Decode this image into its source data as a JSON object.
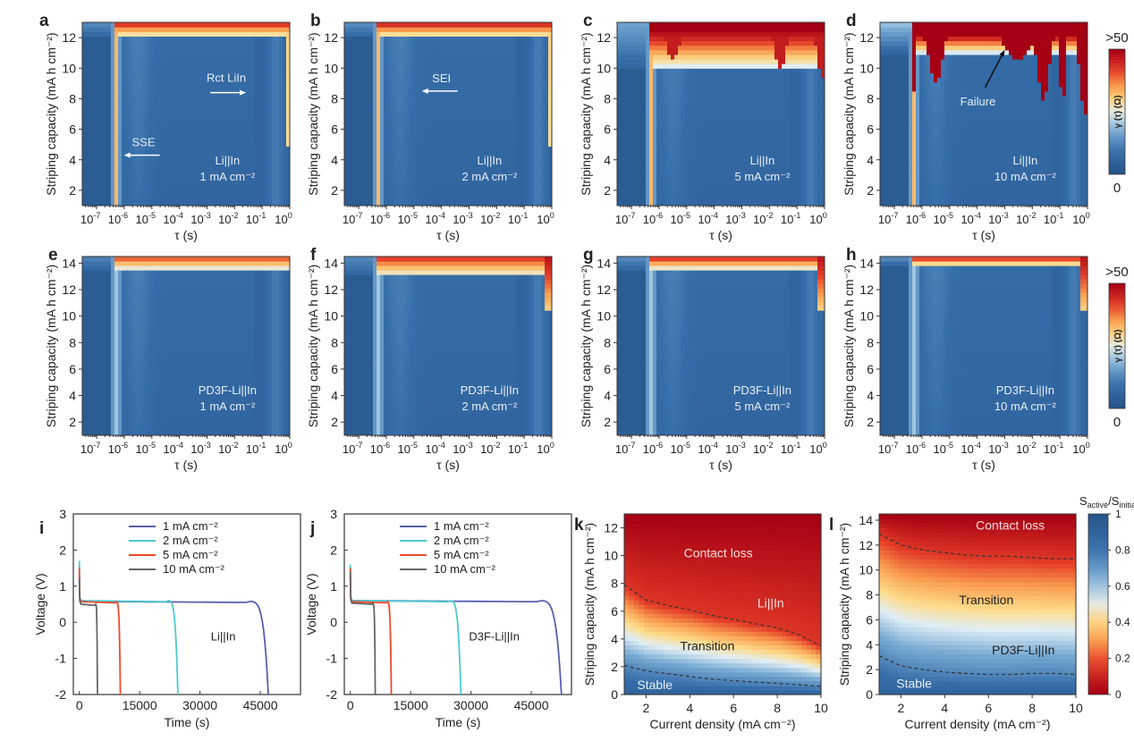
{
  "chart_data": [
    {
      "panel": "a",
      "type": "heatmap",
      "xlabel": "τ (s)",
      "ylabel": "Striping capacity  (mA h cm⁻²)",
      "x_scale": "log",
      "xlim": [
        3e-08,
        1
      ],
      "ylim": [
        1,
        13
      ],
      "xticks": [
        "10⁻⁷",
        "10⁻⁶",
        "10⁻⁵",
        "10⁻⁴",
        "10⁻³",
        "10⁻²",
        "10⁻¹",
        "10⁰"
      ],
      "yticks": [
        2,
        4,
        6,
        8,
        10,
        12
      ],
      "label": [
        "Li||In",
        "1 mA cm⁻²"
      ],
      "annotations": [
        {
          "text": "SSE",
          "arrow": "left",
          "at_tau": 5e-06,
          "at_y": 4.3
        },
        {
          "text": "Rct LiIn",
          "arrow": "right",
          "at_tau": 0.005,
          "at_y": 8.4
        }
      ],
      "hot_onset_capacity": 12.0,
      "severity": 0.25
    },
    {
      "panel": "b",
      "type": "heatmap",
      "xlabel": "τ (s)",
      "ylabel": "Striping capacity  (mA h cm⁻²)",
      "x_scale": "log",
      "xlim": [
        3e-08,
        1
      ],
      "ylim": [
        1,
        13
      ],
      "xticks": [
        "10⁻⁷",
        "10⁻⁶",
        "10⁻⁵",
        "10⁻⁴",
        "10⁻³",
        "10⁻²",
        "10⁻¹",
        "10⁰"
      ],
      "yticks": [
        2,
        4,
        6,
        8,
        10,
        12
      ],
      "label": [
        "Li||In",
        "2 mA cm⁻²"
      ],
      "annotations": [
        {
          "text": "SEI",
          "arrow": "left",
          "at_tau": 0.0001,
          "at_y": 8.5
        }
      ],
      "hot_onset_capacity": 12.0,
      "severity": 0.3
    },
    {
      "panel": "c",
      "type": "heatmap",
      "xlabel": "τ (s)",
      "ylabel": "Striping capacity  (mA h cm⁻²)",
      "x_scale": "log",
      "xlim": [
        3e-08,
        1
      ],
      "ylim": [
        1,
        13
      ],
      "xticks": [
        "10⁻⁷",
        "10⁻⁶",
        "10⁻⁵",
        "10⁻⁴",
        "10⁻³",
        "10⁻²",
        "10⁻¹",
        "10⁰"
      ],
      "yticks": [
        2,
        4,
        6,
        8,
        10,
        12
      ],
      "label": [
        "Li||In",
        "5 mA cm⁻²"
      ],
      "annotations": [],
      "hot_onset_capacity": 10.0,
      "severity": 0.6
    },
    {
      "panel": "d",
      "type": "heatmap",
      "xlabel": "τ (s)",
      "ylabel": "Striping capacity  (mA h cm⁻²)",
      "x_scale": "log",
      "xlim": [
        3e-08,
        1
      ],
      "ylim": [
        1,
        13
      ],
      "xticks": [
        "10⁻⁷",
        "10⁻⁶",
        "10⁻⁵",
        "10⁻⁴",
        "10⁻³",
        "10⁻²",
        "10⁻¹",
        "10⁰"
      ],
      "yticks": [
        2,
        4,
        6,
        8,
        10,
        12
      ],
      "label": [
        "Li||In",
        "10 mA cm⁻²"
      ],
      "annotations": [
        {
          "text": "Failure",
          "arrow": "up-right",
          "at_tau": 0.001,
          "at_y": 11.2
        }
      ],
      "hot_onset_capacity": 11.0,
      "severity": 1.0,
      "colorbar": {
        "label": "γ (τ) (Ω)",
        "max_label": ">50",
        "min_label": "0"
      }
    },
    {
      "panel": "e",
      "type": "heatmap",
      "xlabel": "τ (s)",
      "ylabel": "Striping capacity  (mA h cm⁻²)",
      "x_scale": "log",
      "xlim": [
        3e-08,
        1
      ],
      "ylim": [
        1,
        14.5
      ],
      "xticks": [
        "10⁻⁷",
        "10⁻⁶",
        "10⁻⁵",
        "10⁻⁴",
        "10⁻³",
        "10⁻²",
        "10⁻¹",
        "10⁰"
      ],
      "yticks": [
        2,
        4,
        6,
        8,
        10,
        12,
        14
      ],
      "label": [
        "PD3F-Li||In",
        "1 mA cm⁻²"
      ],
      "annotations": [],
      "hot_onset_capacity": 13.5,
      "severity": 0.15
    },
    {
      "panel": "f",
      "type": "heatmap",
      "xlabel": "τ (s)",
      "ylabel": "Striping capacity  (mA h cm⁻²)",
      "x_scale": "log",
      "xlim": [
        3e-08,
        1
      ],
      "ylim": [
        1,
        14.5
      ],
      "xticks": [
        "10⁻⁷",
        "10⁻⁶",
        "10⁻⁵",
        "10⁻⁴",
        "10⁻³",
        "10⁻²",
        "10⁻¹",
        "10⁰"
      ],
      "yticks": [
        2,
        4,
        6,
        8,
        10,
        12,
        14
      ],
      "label": [
        "PD3F-Li||In",
        "2 mA cm⁻²"
      ],
      "annotations": [],
      "hot_onset_capacity": 13.0,
      "severity": 0.2
    },
    {
      "panel": "g",
      "type": "heatmap",
      "xlabel": "τ (s)",
      "ylabel": "Striping capacity  (mA h cm⁻²)",
      "x_scale": "log",
      "xlim": [
        3e-08,
        1
      ],
      "ylim": [
        1,
        14.5
      ],
      "xticks": [
        "10⁻⁷",
        "10⁻⁶",
        "10⁻⁵",
        "10⁻⁴",
        "10⁻³",
        "10⁻²",
        "10⁻¹",
        "10⁰"
      ],
      "yticks": [
        2,
        4,
        6,
        8,
        10,
        12,
        14
      ],
      "label": [
        "PD3F-Li||In",
        "5 mA cm⁻²"
      ],
      "annotations": [],
      "hot_onset_capacity": 13.5,
      "severity": 0.25
    },
    {
      "panel": "h",
      "type": "heatmap",
      "xlabel": "τ (s)",
      "ylabel": "Striping capacity  (mA h cm⁻²)",
      "x_scale": "log",
      "xlim": [
        3e-08,
        1
      ],
      "ylim": [
        1,
        14.5
      ],
      "xticks": [
        "10⁻⁷",
        "10⁻⁶",
        "10⁻⁵",
        "10⁻⁴",
        "10⁻³",
        "10⁻²",
        "10⁻¹",
        "10⁰"
      ],
      "yticks": [
        2,
        4,
        6,
        8,
        10,
        12,
        14
      ],
      "label": [
        "PD3F-Li||In",
        "10 mA cm⁻²"
      ],
      "annotations": [],
      "hot_onset_capacity": 13.8,
      "severity": 0.3,
      "colorbar": {
        "label": "γ (τ) (Ω)",
        "max_label": ">50",
        "min_label": "0"
      }
    },
    {
      "panel": "i",
      "type": "line",
      "xlabel": "Time (s)",
      "ylabel": "Voltage (V)",
      "xlim": [
        -1500,
        55000
      ],
      "ylim": [
        -2,
        3
      ],
      "xticks": [
        0,
        15000,
        30000,
        45000
      ],
      "yticks": [
        -2,
        -1,
        0,
        1,
        2,
        3
      ],
      "label": "Li||In",
      "series": [
        {
          "name": "1 mA cm⁻²",
          "color": "#5560b0",
          "plateau": 0.58,
          "end_time": 47000,
          "spike": 1.3
        },
        {
          "name": "2 mA cm⁻²",
          "color": "#4ec9cf",
          "plateau": 0.6,
          "end_time": 24500,
          "spike": 1.7
        },
        {
          "name": "5 mA cm⁻²",
          "color": "#f04a2a",
          "plateau": 0.57,
          "end_time": 10200,
          "spike": 1.5
        },
        {
          "name": "10 mA cm⁻²",
          "color": "#666666",
          "plateau": 0.5,
          "end_time": 4500,
          "spike": 1.2
        }
      ]
    },
    {
      "panel": "j",
      "type": "line",
      "xlabel": "Time (s)",
      "ylabel": "Voltage (V)",
      "xlim": [
        -1500,
        55000
      ],
      "ylim": [
        -2,
        3
      ],
      "xticks": [
        0,
        15000,
        30000,
        45000
      ],
      "yticks": [
        -2,
        -1,
        0,
        1,
        2,
        3
      ],
      "label": "D3F-Li||In",
      "series": [
        {
          "name": "1 mA cm⁻²",
          "color": "#5560b0",
          "plateau": 0.6,
          "end_time": 52500,
          "spike": 1.3
        },
        {
          "name": "2 mA cm⁻²",
          "color": "#4ec9cf",
          "plateau": 0.6,
          "end_time": 27500,
          "spike": 1.6
        },
        {
          "name": "5 mA cm⁻²",
          "color": "#f04a2a",
          "plateau": 0.57,
          "end_time": 10200,
          "spike": 1.5
        },
        {
          "name": "10 mA cm⁻²",
          "color": "#666666",
          "plateau": 0.53,
          "end_time": 6200,
          "spike": 1.4
        }
      ]
    },
    {
      "panel": "k",
      "type": "heatmap",
      "xlabel": "Current density (mA cm⁻²)",
      "ylabel": "Striping capacity  (mA h cm⁻²)",
      "xlim": [
        1,
        10
      ],
      "ylim": [
        0,
        13
      ],
      "xticks": [
        2,
        4,
        6,
        8,
        10
      ],
      "yticks": [
        0,
        2,
        4,
        6,
        8,
        10,
        12
      ],
      "region_labels": [
        {
          "text": "Contact loss",
          "x": 5.3,
          "y": 10.2,
          "color": "#f5dede"
        },
        {
          "text": "Li||In",
          "x": 7.7,
          "y": 6.6,
          "color": "#f5dede"
        },
        {
          "text": "Transition",
          "x": 4.8,
          "y": 3.5,
          "color": "#222"
        },
        {
          "text": "Stable",
          "x": 2.4,
          "y": 0.7,
          "color": "#e8f0f8"
        }
      ],
      "upper_boundary": {
        "x": [
          1,
          2,
          3,
          4,
          5,
          6,
          7,
          8,
          9,
          10
        ],
        "y": [
          7.9,
          6.8,
          6.4,
          6.1,
          5.7,
          5.4,
          5.1,
          4.8,
          4.3,
          3.5
        ]
      },
      "lower_boundary": {
        "x": [
          1,
          2,
          3,
          4,
          5,
          6,
          7,
          8,
          9,
          10
        ],
        "y": [
          2.1,
          1.7,
          1.5,
          1.3,
          1.1,
          1.0,
          0.9,
          0.8,
          0.7,
          0.6
        ]
      }
    },
    {
      "panel": "l",
      "type": "heatmap",
      "xlabel": "Current density (mA cm⁻²)",
      "ylabel": "Striping capacity  (mA h cm⁻²)",
      "xlim": [
        1,
        10
      ],
      "ylim": [
        0,
        14.5
      ],
      "xticks": [
        2,
        4,
        6,
        8,
        10
      ],
      "yticks": [
        0,
        2,
        4,
        6,
        8,
        10,
        12,
        14
      ],
      "region_labels": [
        {
          "text": "Contact loss",
          "x": 7.0,
          "y": 13.6,
          "color": "#f5dede"
        },
        {
          "text": "Transition",
          "x": 5.9,
          "y": 7.6,
          "color": "#222"
        },
        {
          "text": "PD3F-Li||In",
          "x": 7.6,
          "y": 3.6,
          "color": "#222"
        },
        {
          "text": "Stable",
          "x": 2.6,
          "y": 0.9,
          "color": "#e8f0f8"
        }
      ],
      "upper_boundary": {
        "x": [
          1,
          2,
          3,
          4,
          5,
          6,
          7,
          8,
          9,
          10
        ],
        "y": [
          12.9,
          12.0,
          11.6,
          11.4,
          11.2,
          11.1,
          11.1,
          11.0,
          10.9,
          10.9
        ]
      },
      "lower_boundary": {
        "x": [
          1,
          2,
          3,
          4,
          5,
          6,
          7,
          8,
          9,
          10
        ],
        "y": [
          3.1,
          2.3,
          2.0,
          1.8,
          1.7,
          1.6,
          1.6,
          1.7,
          1.7,
          1.6
        ]
      },
      "colorbar": {
        "title": "S_active/S_initial",
        "ticks": [
          0,
          0.2,
          0.4,
          0.6,
          0.8,
          1
        ]
      }
    }
  ]
}
